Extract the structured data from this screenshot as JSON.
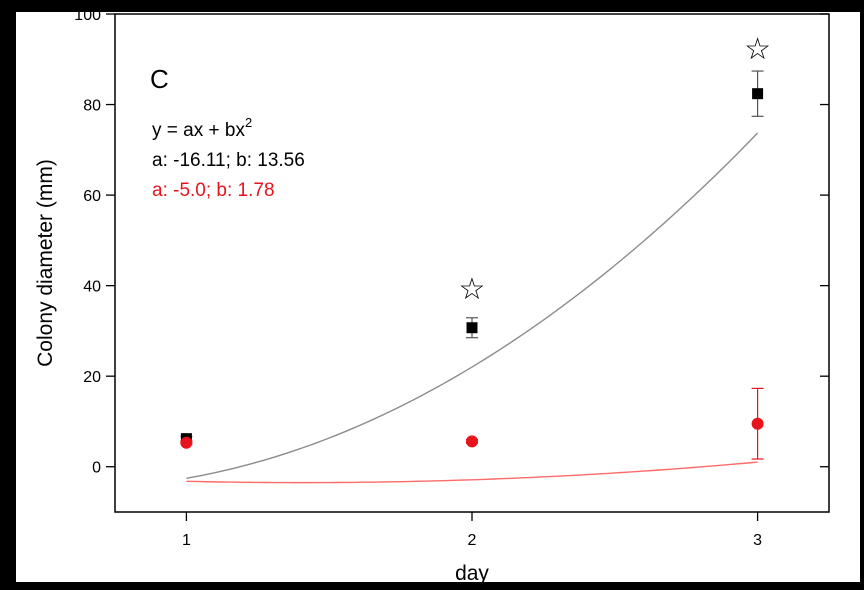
{
  "chart_data": {
    "type": "scatter",
    "panel_label": "C",
    "xlabel": "day",
    "ylabel": "Colony diameter (mm)",
    "xlim": [
      0.75,
      3.25
    ],
    "ylim": [
      -10,
      100
    ],
    "xticks": [
      1,
      2,
      3
    ],
    "yticks": [
      0,
      20,
      40,
      60,
      80,
      100
    ],
    "grid": false,
    "legend": "none",
    "equation": {
      "text_main": "y = ax + bx",
      "text_sup": "2"
    },
    "fit_labels": [
      {
        "text": "a: -16.11; b: 13.56",
        "color": "#000000"
      },
      {
        "text": "a: -5.0; b: 1.78",
        "color": "#e8141b"
      }
    ],
    "series": [
      {
        "marker": "square",
        "color": "#000000",
        "x": [
          1,
          2,
          3
        ],
        "y": [
          6.2,
          30.7,
          82.4
        ],
        "error": [
          0.5,
          2.2,
          5.0
        ],
        "fit": {
          "a": -16.11,
          "b": 13.56,
          "color": "#8c8c8c"
        }
      },
      {
        "marker": "circle",
        "color": "#e8141b",
        "x": [
          1,
          2,
          3
        ],
        "y": [
          5.3,
          5.6,
          9.5
        ],
        "error": [
          0.3,
          0.4,
          7.8
        ],
        "fit": {
          "a": -5.0,
          "b": 1.78,
          "color": "#ff6b6b"
        }
      }
    ],
    "annotations": [
      {
        "symbol": "☆",
        "x": 2,
        "y": 39.5
      },
      {
        "symbol": "☆",
        "x": 3,
        "y": 92.5
      }
    ]
  }
}
